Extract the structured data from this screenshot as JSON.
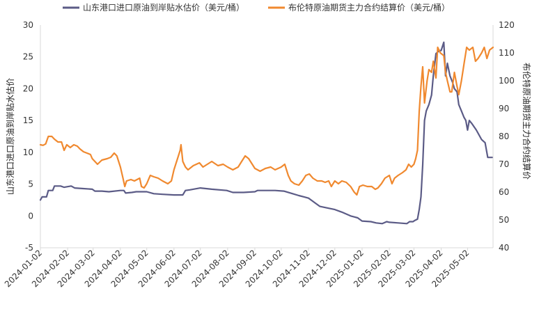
{
  "chart_data": {
    "type": "line",
    "title": "",
    "left_axis": {
      "label": "山东港口进口原油到岸贴水估价",
      "ylim": [
        -5,
        30
      ],
      "ticks": [
        -5,
        0,
        5,
        10,
        15,
        20,
        25,
        30
      ]
    },
    "right_axis": {
      "label": "布伦特原油期货主力合约结算价",
      "ylim": [
        40,
        120
      ],
      "ticks": [
        40,
        50,
        60,
        70,
        80,
        90,
        100,
        110,
        120
      ]
    },
    "x_ticks": [
      "2024-01-02",
      "2024-02-02",
      "2024-03-02",
      "2024-04-02",
      "2024-05-02",
      "2024-06-02",
      "2024-07-02",
      "2024-08-02",
      "2024-09-02",
      "2024-10-02",
      "2024-11-02",
      "2024-12-02",
      "2025-01-02",
      "2025-02-02",
      "2025-03-02",
      "2025-04-02",
      "2025-05-02"
    ],
    "x_range": [
      "2024-01-02",
      "2025-05-31"
    ],
    "legend_position": "top",
    "grid": false,
    "series": [
      {
        "name": "山东港口进口原油到岸贴水估价（美元/桶）",
        "axis": "left",
        "color": "#5b5b86",
        "points": [
          [
            "2024-01-02",
            2.5
          ],
          [
            "2024-01-04",
            3.0
          ],
          [
            "2024-01-09",
            3.0
          ],
          [
            "2024-01-11",
            4.0
          ],
          [
            "2024-01-16",
            4.0
          ],
          [
            "2024-01-18",
            4.7
          ],
          [
            "2024-01-25",
            4.7
          ],
          [
            "2024-01-29",
            4.5
          ],
          [
            "2024-02-02",
            4.6
          ],
          [
            "2024-02-06",
            4.7
          ],
          [
            "2024-02-10",
            4.4
          ],
          [
            "2024-02-20",
            4.3
          ],
          [
            "2024-03-01",
            4.2
          ],
          [
            "2024-03-04",
            3.9
          ],
          [
            "2024-03-12",
            3.9
          ],
          [
            "2024-03-20",
            3.8
          ],
          [
            "2024-04-02",
            4.0
          ],
          [
            "2024-04-06",
            4.0
          ],
          [
            "2024-04-08",
            3.6
          ],
          [
            "2024-04-15",
            3.7
          ],
          [
            "2024-04-20",
            3.8
          ],
          [
            "2024-05-02",
            3.8
          ],
          [
            "2024-05-10",
            3.5
          ],
          [
            "2024-05-20",
            3.4
          ],
          [
            "2024-06-02",
            3.3
          ],
          [
            "2024-06-12",
            3.3
          ],
          [
            "2024-06-15",
            4.0
          ],
          [
            "2024-06-20",
            4.1
          ],
          [
            "2024-07-02",
            4.4
          ],
          [
            "2024-07-15",
            4.2
          ],
          [
            "2024-08-01",
            4.0
          ],
          [
            "2024-08-08",
            3.7
          ],
          [
            "2024-08-20",
            3.7
          ],
          [
            "2024-09-02",
            3.8
          ],
          [
            "2024-09-05",
            4.0
          ],
          [
            "2024-09-25",
            4.0
          ],
          [
            "2024-10-05",
            3.9
          ],
          [
            "2024-10-15",
            3.5
          ],
          [
            "2024-10-22",
            3.2
          ],
          [
            "2024-10-28",
            3.0
          ],
          [
            "2024-11-02",
            2.8
          ],
          [
            "2024-11-05",
            2.5
          ],
          [
            "2024-11-10",
            2.0
          ],
          [
            "2024-11-15",
            1.5
          ],
          [
            "2024-11-22",
            1.3
          ],
          [
            "2024-12-02",
            1.0
          ],
          [
            "2024-12-10",
            0.6
          ],
          [
            "2024-12-20",
            0.0
          ],
          [
            "2024-12-28",
            -0.3
          ],
          [
            "2025-01-02",
            -0.8
          ],
          [
            "2025-01-12",
            -0.9
          ],
          [
            "2025-01-18",
            -1.1
          ],
          [
            "2025-01-25",
            -1.2
          ],
          [
            "2025-01-30",
            -0.9
          ],
          [
            "2025-02-02",
            -1.0
          ],
          [
            "2025-02-12",
            -1.1
          ],
          [
            "2025-02-22",
            -1.2
          ],
          [
            "2025-02-25",
            -0.9
          ],
          [
            "2025-03-01",
            -0.9
          ],
          [
            "2025-03-03",
            -0.7
          ],
          [
            "2025-03-06",
            -0.5
          ],
          [
            "2025-03-08",
            1.0
          ],
          [
            "2025-03-10",
            3.0
          ],
          [
            "2025-03-12",
            8.0
          ],
          [
            "2025-03-14",
            15.0
          ],
          [
            "2025-03-16",
            16.5
          ],
          [
            "2025-03-19",
            17.5
          ],
          [
            "2025-03-22",
            19.0
          ],
          [
            "2025-03-24",
            22.0
          ],
          [
            "2025-03-27",
            25.5
          ],
          [
            "2025-03-31",
            26.0
          ],
          [
            "2025-04-02",
            26.0
          ],
          [
            "2025-04-05",
            27.3
          ],
          [
            "2025-04-07",
            22.0
          ],
          [
            "2025-04-09",
            24.0
          ],
          [
            "2025-04-12",
            22.0
          ],
          [
            "2025-04-15",
            21.0
          ],
          [
            "2025-04-17",
            20.0
          ],
          [
            "2025-04-20",
            19.5
          ],
          [
            "2025-04-22",
            17.5
          ],
          [
            "2025-04-25",
            16.5
          ],
          [
            "2025-04-28",
            15.5
          ],
          [
            "2025-04-30",
            15.0
          ],
          [
            "2025-05-02",
            13.5
          ],
          [
            "2025-05-04",
            15.0
          ],
          [
            "2025-05-07",
            14.5
          ],
          [
            "2025-05-12",
            13.5
          ],
          [
            "2025-05-18",
            12.0
          ],
          [
            "2025-05-22",
            11.5
          ],
          [
            "2025-05-25",
            9.2
          ],
          [
            "2025-05-30",
            9.2
          ]
        ]
      },
      {
        "name": "布伦特原油期货主力合约结算价（美元/桶）",
        "axis": "right",
        "color": "#f0892f",
        "points": [
          [
            "2024-01-02",
            77.0
          ],
          [
            "2024-01-05",
            76.8
          ],
          [
            "2024-01-08",
            77.3
          ],
          [
            "2024-01-11",
            80.0
          ],
          [
            "2024-01-15",
            80.0
          ],
          [
            "2024-01-18",
            79.0
          ],
          [
            "2024-01-22",
            78.0
          ],
          [
            "2024-01-26",
            78.0
          ],
          [
            "2024-01-29",
            75.0
          ],
          [
            "2024-02-01",
            77.0
          ],
          [
            "2024-02-05",
            76.0
          ],
          [
            "2024-02-09",
            77.0
          ],
          [
            "2024-02-13",
            76.5
          ],
          [
            "2024-02-16",
            75.5
          ],
          [
            "2024-02-20",
            74.5
          ],
          [
            "2024-02-24",
            74.0
          ],
          [
            "2024-02-28",
            73.5
          ],
          [
            "2024-03-01",
            72.0
          ],
          [
            "2024-03-04",
            71.0
          ],
          [
            "2024-03-07",
            70.0
          ],
          [
            "2024-03-12",
            71.5
          ],
          [
            "2024-03-18",
            72.0
          ],
          [
            "2024-03-22",
            72.5
          ],
          [
            "2024-03-26",
            74.0
          ],
          [
            "2024-03-29",
            73.0
          ],
          [
            "2024-04-02",
            69.0
          ],
          [
            "2024-04-05",
            65.0
          ],
          [
            "2024-04-07",
            62.0
          ],
          [
            "2024-04-09",
            64.0
          ],
          [
            "2024-04-14",
            64.5
          ],
          [
            "2024-04-18",
            64.0
          ],
          [
            "2024-04-24",
            65.0
          ],
          [
            "2024-04-26",
            62.0
          ],
          [
            "2024-04-29",
            61.5
          ],
          [
            "2024-05-02",
            63.0
          ],
          [
            "2024-05-06",
            66.0
          ],
          [
            "2024-05-10",
            65.5
          ],
          [
            "2024-05-15",
            65.0
          ],
          [
            "2024-05-20",
            64.0
          ],
          [
            "2024-05-26",
            63.0
          ],
          [
            "2024-05-30",
            64.0
          ],
          [
            "2024-06-02",
            68.0
          ],
          [
            "2024-06-06",
            72.0
          ],
          [
            "2024-06-09",
            75.0
          ],
          [
            "2024-06-10",
            77.0
          ],
          [
            "2024-06-12",
            71.0
          ],
          [
            "2024-06-15",
            69.0
          ],
          [
            "2024-06-18",
            68.0
          ],
          [
            "2024-06-24",
            69.5
          ],
          [
            "2024-07-01",
            70.5
          ],
          [
            "2024-07-05",
            69.0
          ],
          [
            "2024-07-10",
            70.0
          ],
          [
            "2024-07-15",
            71.0
          ],
          [
            "2024-07-22",
            69.5
          ],
          [
            "2024-07-28",
            70.0
          ],
          [
            "2024-08-02",
            69.0
          ],
          [
            "2024-08-08",
            68.0
          ],
          [
            "2024-08-14",
            69.0
          ],
          [
            "2024-08-18",
            71.0
          ],
          [
            "2024-08-22",
            73.0
          ],
          [
            "2024-08-26",
            72.0
          ],
          [
            "2024-08-30",
            70.0
          ],
          [
            "2024-09-02",
            68.5
          ],
          [
            "2024-09-08",
            67.5
          ],
          [
            "2024-09-14",
            68.5
          ],
          [
            "2024-09-20",
            69.0
          ],
          [
            "2024-09-25",
            68.0
          ],
          [
            "2024-10-02",
            69.0
          ],
          [
            "2024-10-06",
            70.0
          ],
          [
            "2024-10-10",
            66.0
          ],
          [
            "2024-10-13",
            64.0
          ],
          [
            "2024-10-17",
            63.0
          ],
          [
            "2024-10-22",
            62.5
          ],
          [
            "2024-10-26",
            64.0
          ],
          [
            "2024-10-30",
            66.0
          ],
          [
            "2024-11-03",
            66.5
          ],
          [
            "2024-11-07",
            65.0
          ],
          [
            "2024-11-12",
            64.0
          ],
          [
            "2024-11-17",
            64.0
          ],
          [
            "2024-11-21",
            63.5
          ],
          [
            "2024-11-25",
            64.0
          ],
          [
            "2024-11-28",
            62.0
          ],
          [
            "2024-12-02",
            64.0
          ],
          [
            "2024-12-06",
            63.0
          ],
          [
            "2024-12-10",
            64.0
          ],
          [
            "2024-12-15",
            63.5
          ],
          [
            "2024-12-20",
            62.0
          ],
          [
            "2024-12-24",
            60.0
          ],
          [
            "2024-12-27",
            59.0
          ],
          [
            "2024-12-30",
            62.0
          ],
          [
            "2025-01-03",
            62.5
          ],
          [
            "2025-01-08",
            62.0
          ],
          [
            "2025-01-13",
            62.0
          ],
          [
            "2025-01-17",
            61.0
          ],
          [
            "2025-01-20",
            61.5
          ],
          [
            "2025-01-24",
            63.0
          ],
          [
            "2025-01-28",
            65.0
          ],
          [
            "2025-02-02",
            66.0
          ],
          [
            "2025-02-05",
            63.0
          ],
          [
            "2025-02-08",
            65.0
          ],
          [
            "2025-02-12",
            66.0
          ],
          [
            "2025-02-17",
            67.0
          ],
          [
            "2025-02-21",
            68.0
          ],
          [
            "2025-02-24",
            70.0
          ],
          [
            "2025-02-27",
            69.0
          ],
          [
            "2025-03-02",
            70.0
          ],
          [
            "2025-03-04",
            72.0
          ],
          [
            "2025-03-06",
            75.0
          ],
          [
            "2025-03-08",
            89.0
          ],
          [
            "2025-03-10",
            98.0
          ],
          [
            "2025-03-12",
            105.0
          ],
          [
            "2025-03-14",
            92.0
          ],
          [
            "2025-03-17",
            100.0
          ],
          [
            "2025-03-19",
            104.0
          ],
          [
            "2025-03-22",
            103.0
          ],
          [
            "2025-03-24",
            107.0
          ],
          [
            "2025-03-27",
            101.0
          ],
          [
            "2025-03-29",
            112.0
          ],
          [
            "2025-04-01",
            110.0
          ],
          [
            "2025-04-05",
            109.0
          ],
          [
            "2025-04-07",
            103.0
          ],
          [
            "2025-04-09",
            100.0
          ],
          [
            "2025-04-12",
            96.0
          ],
          [
            "2025-04-14",
            96.0
          ],
          [
            "2025-04-17",
            103.0
          ],
          [
            "2025-04-20",
            98.0
          ],
          [
            "2025-04-22",
            95.0
          ],
          [
            "2025-04-25",
            100.0
          ],
          [
            "2025-04-28",
            106.0
          ],
          [
            "2025-05-01",
            112.0
          ],
          [
            "2025-05-04",
            111.0
          ],
          [
            "2025-05-08",
            112.0
          ],
          [
            "2025-05-11",
            107.0
          ],
          [
            "2025-05-14",
            108.0
          ],
          [
            "2025-05-18",
            110.0
          ],
          [
            "2025-05-21",
            112.0
          ],
          [
            "2025-05-24",
            108.0
          ],
          [
            "2025-05-27",
            111.0
          ],
          [
            "2025-05-31",
            112.0
          ]
        ]
      }
    ]
  }
}
